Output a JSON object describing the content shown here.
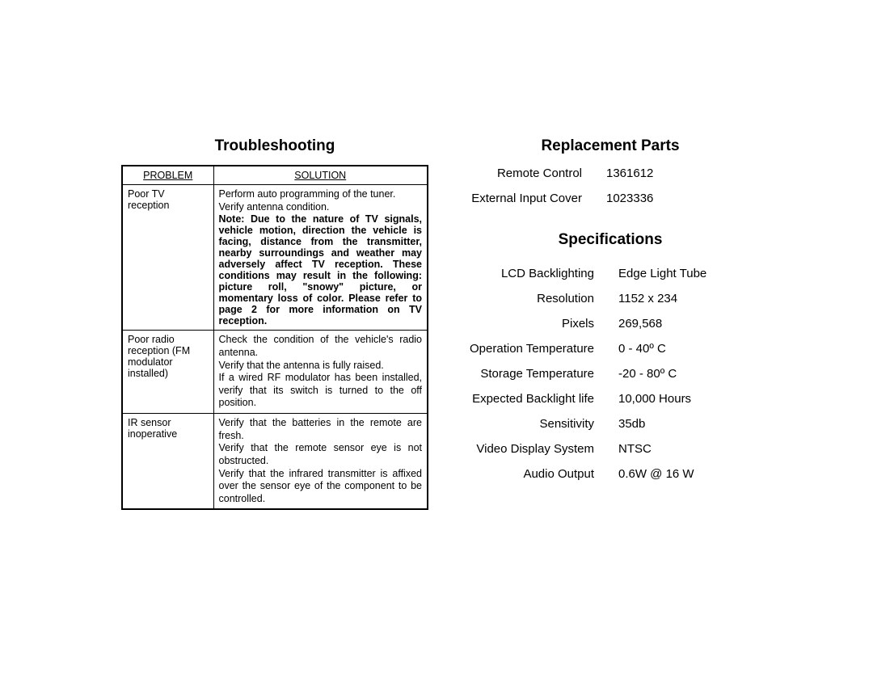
{
  "troubleshooting": {
    "title": "Troubleshooting",
    "headers": {
      "problem": "PROBLEM",
      "solution": "SOLUTION"
    },
    "rows": [
      {
        "problem": "Poor TV reception",
        "solution_line1": "Perform auto programming of the tuner.",
        "solution_line2": "Verify antenna condition.",
        "note": "Note: Due to the nature of TV signals, vehicle motion, direction the vehicle is facing, distance from the transmitter, nearby surroundings and weather may adversely affect TV reception.  These conditions may result in the following: picture roll, \"snowy\" picture, or momentary loss of color. Please refer to page 2 for more information on TV reception."
      },
      {
        "problem": "Poor radio reception (FM modulator installed)",
        "solution_line1": "Check the condition of the vehicle's radio antenna.",
        "solution_line2": "Verify that the antenna is fully raised.",
        "solution_line3": "If a wired RF modulator has been installed, verify that its switch is turned to the off position."
      },
      {
        "problem": "IR sensor inoperative",
        "solution_line1": "Verify that the batteries in the remote are fresh.",
        "solution_line2": "Verify that the remote sensor eye is not obstructed.",
        "solution_line3": "Verify that the infrared transmitter is affixed over the sensor eye of the component to be controlled."
      }
    ]
  },
  "replacement_parts": {
    "title": "Replacement Parts",
    "rows": [
      {
        "label": "Remote Control",
        "value": "1361612"
      },
      {
        "label": "External Input Cover",
        "value": "1023336"
      }
    ]
  },
  "specifications": {
    "title": "Specifications",
    "rows": [
      {
        "label": "LCD Backlighting",
        "value": "Edge Light Tube"
      },
      {
        "label": "Resolution",
        "value": "1152 x 234"
      },
      {
        "label": "Pixels",
        "value": "269,568"
      },
      {
        "label": "Operation Temperature",
        "value": "0 - 40º C"
      },
      {
        "label": "Storage Temperature",
        "value": "-20 - 80º C"
      },
      {
        "label": "Expected Backlight life",
        "value": "10,000 Hours"
      },
      {
        "label": "Sensitivity",
        "value": "35db"
      },
      {
        "label": "Video Display System",
        "value": "NTSC"
      },
      {
        "label": "Audio Output",
        "value": "0.6W @ 16 W"
      }
    ]
  },
  "style": {
    "page_bg": "#ffffff",
    "text_color": "#000000",
    "border_color": "#000000",
    "title_fontsize_pt": 14,
    "body_fontsize_pt": 11,
    "table_fontsize_pt": 9,
    "font_family": "Arial, Helvetica, sans-serif"
  }
}
